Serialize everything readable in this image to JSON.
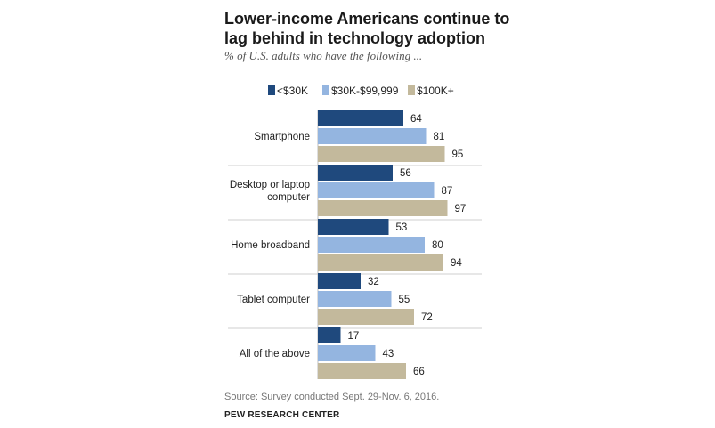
{
  "title": "Lower-income Americans continue to lag behind in technology adoption",
  "subtitle": "% of U.S. adults who have the following ...",
  "source": "Source: Survey conducted Sept. 29-Nov. 6, 2016.",
  "organization": "PEW RESEARCH CENTER",
  "chart_data": {
    "type": "bar",
    "orientation": "horizontal",
    "title": "Lower-income Americans continue to lag behind in technology adoption",
    "subtitle": "% of U.S. adults who have the following ...",
    "categories": [
      [
        "Smartphone"
      ],
      [
        "Desktop or laptop",
        "computer"
      ],
      [
        "Home broadband"
      ],
      [
        "Tablet computer"
      ],
      [
        "All of the above"
      ]
    ],
    "series": [
      {
        "name": "<$30K",
        "color": "#1f497d",
        "values": [
          64,
          56,
          53,
          32,
          17
        ]
      },
      {
        "name": "$30K-$99,999",
        "color": "#94b5e0",
        "values": [
          81,
          87,
          80,
          55,
          43
        ]
      },
      {
        "name": "$100K+",
        "color": "#c3b99c",
        "values": [
          95,
          97,
          94,
          72,
          66
        ]
      }
    ],
    "xlim": [
      0,
      100
    ],
    "legend_position": "top",
    "grid": false,
    "data_labels": true
  }
}
